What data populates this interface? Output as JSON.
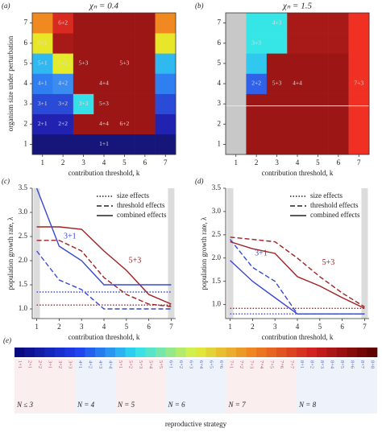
{
  "chart_data": [
    {
      "type": "heatmap",
      "panel": "(a)",
      "title": "χₙ = 0.4",
      "xlabel": "contribution threshold, k",
      "ylabel": "organism size under perturbation",
      "xlim": [
        0.5,
        7.5
      ],
      "ylim": [
        0.5,
        7.5
      ],
      "xticks": [
        1,
        2,
        3,
        4,
        5,
        6,
        7
      ],
      "yticks": [
        1,
        2,
        3,
        4,
        5,
        6,
        7
      ],
      "rows": [
        {
          "colors": [
            "#15157a",
            "#15157a",
            "#15157a",
            "#15157a",
            "#15157a",
            "#15157a",
            "#15157a"
          ],
          "labels": [
            null,
            null,
            null,
            "1+1",
            null,
            null,
            null
          ]
        },
        {
          "colors": [
            "#2222b0",
            "#2222b0",
            "#9c1616",
            "#9c1616",
            "#9c1616",
            "#9c1616",
            "#2222b0"
          ],
          "labels": [
            "2+1",
            "2+2",
            null,
            "4+4",
            "6+2",
            null,
            null
          ]
        },
        {
          "colors": [
            "#2a4ad8",
            "#2a4ad8",
            "#36e0e8",
            "#9c1616",
            "#9c1616",
            "#9c1616",
            "#2a4ad8"
          ],
          "labels": [
            "3+1",
            "3+2",
            "3+3",
            "5+3",
            null,
            null,
            null
          ]
        },
        {
          "colors": [
            "#2f7ff0",
            "#3a8cf0",
            "#9c1616",
            "#9c1616",
            "#9c1616",
            "#9c1616",
            "#2f7ff0"
          ],
          "labels": [
            "4+1",
            "4+2",
            null,
            "4+4",
            null,
            null,
            null
          ]
        },
        {
          "colors": [
            "#30b8f0",
            "#e4ea2c",
            "#9c1616",
            "#9c1616",
            "#9c1616",
            "#9c1616",
            "#30b8f0"
          ],
          "labels": [
            "5+1",
            "5+2",
            "5+3",
            null,
            "5+3",
            null,
            null
          ]
        },
        {
          "colors": [
            "#e8e628",
            "#a81a18",
            "#9c1616",
            "#9c1616",
            "#9c1616",
            "#9c1616",
            "#e8e628"
          ],
          "labels": [
            "6+1",
            null,
            null,
            null,
            null,
            null,
            null
          ]
        },
        {
          "colors": [
            "#f08a20",
            "#d82a20",
            "#9c1616",
            "#9c1616",
            "#9c1616",
            "#9c1616",
            "#f08a20"
          ],
          "labels": [
            null,
            "6+2",
            null,
            null,
            null,
            null,
            null
          ]
        }
      ]
    },
    {
      "type": "heatmap",
      "panel": "(b)",
      "title": "χₙ = 1.5",
      "xlabel": "contribution threshold, k",
      "xlim": [
        0.5,
        7.5
      ],
      "ylim": [
        0.5,
        7.5
      ],
      "xticks": [
        1,
        2,
        3,
        4,
        5,
        6,
        7
      ],
      "yticks": [
        1,
        2,
        3,
        4,
        5,
        6,
        7
      ],
      "hline": {
        "value": 2.9,
        "color": "#e8e8e8"
      },
      "rows": [
        {
          "colors": [
            "#c8c8c8",
            "#9c1616",
            "#9c1616",
            "#9c1616",
            "#9c1616",
            "#9c1616",
            "#f03022"
          ],
          "labels": [
            null,
            null,
            null,
            null,
            null,
            null,
            null
          ]
        },
        {
          "colors": [
            "#c8c8c8",
            "#9c1616",
            "#9c1616",
            "#9c1616",
            "#9c1616",
            "#9c1616",
            "#f03022"
          ],
          "labels": [
            null,
            null,
            null,
            null,
            null,
            null,
            null
          ]
        },
        {
          "colors": [
            "#c8c8c8",
            "#9c1616",
            "#9c1616",
            "#9c1616",
            "#9c1616",
            "#9c1616",
            "#f03022"
          ],
          "labels": [
            null,
            null,
            null,
            null,
            null,
            null,
            null
          ]
        },
        {
          "colors": [
            "#c8c8c8",
            "#2f62e8",
            "#9c1616",
            "#9c1616",
            "#9c1616",
            "#9c1616",
            "#f03022"
          ],
          "labels": [
            null,
            "2+2",
            "5+3",
            "4+4",
            null,
            null,
            "7+3"
          ]
        },
        {
          "colors": [
            "#c8c8c8",
            "#30c8ee",
            "#9c1616",
            "#9c1616",
            "#9c1616",
            "#9c1616",
            "#f03022"
          ],
          "labels": [
            null,
            null,
            null,
            null,
            null,
            null,
            null
          ]
        },
        {
          "colors": [
            "#c8c8c8",
            "#36e6e6",
            "#36e6e6",
            "#a81a18",
            "#a81a18",
            "#a81a18",
            "#f03022"
          ],
          "labels": [
            null,
            "3+3",
            null,
            null,
            null,
            null,
            null
          ]
        },
        {
          "colors": [
            "#c8c8c8",
            "#36e6e6",
            "#36e6e6",
            "#a81a18",
            "#a81a18",
            "#a81a18",
            "#f03022"
          ],
          "labels": [
            null,
            null,
            "4+3",
            null,
            null,
            null,
            null
          ]
        }
      ]
    },
    {
      "type": "line",
      "panel": "(c)",
      "xlabel": "contribution threshold, k",
      "ylabel": "population growth rate, λ",
      "xlim": [
        0.8,
        7.2
      ],
      "ylim": [
        0.8,
        3.5
      ],
      "xticks": [
        1,
        2,
        3,
        4,
        5,
        6,
        7
      ],
      "yticks": [
        {
          "value": 1,
          "label": "1.0"
        },
        1.5,
        {
          "value": 2,
          "label": "2.0"
        },
        2.5,
        {
          "value": 3,
          "label": "3.0"
        },
        3.5
      ],
      "shaded": [
        1,
        7
      ],
      "x": [
        1,
        2,
        3,
        4,
        5,
        6,
        7
      ],
      "legend": [
        {
          "name": "size effects",
          "dash": "dotted"
        },
        {
          "name": "threshold effects",
          "dash": "dashed"
        },
        {
          "name": "combined effects",
          "dash": "solid"
        }
      ],
      "series": [
        {
          "color": "#3848d0",
          "dash": "dotted",
          "values": [
            1.35,
            1.35,
            1.35,
            1.35,
            1.35,
            1.35,
            1.35
          ]
        },
        {
          "color": "#a02020",
          "dash": "dotted",
          "values": [
            1.08,
            1.08,
            1.08,
            1.08,
            1.08,
            1.08,
            1.08
          ]
        },
        {
          "color": "#a02020",
          "dash": "dashed",
          "values": [
            2.42,
            2.42,
            2.2,
            1.65,
            1.3,
            1.1,
            1.05
          ]
        },
        {
          "color": "#3848d0",
          "dash": "dashed",
          "values": [
            2.2,
            1.6,
            1.4,
            1.0,
            1.0,
            1.0,
            1.0
          ]
        },
        {
          "color": "#a02020",
          "dash": "solid",
          "values": [
            2.7,
            2.7,
            2.65,
            2.2,
            1.8,
            1.3,
            1.1
          ]
        },
        {
          "color": "#3848d0",
          "dash": "solid",
          "values": [
            3.5,
            2.3,
            2.0,
            1.5,
            1.5,
            1.5,
            1.5
          ]
        }
      ],
      "annotations": [
        {
          "text": "5+3",
          "x": 5.1,
          "y": 2.0,
          "color": "#a02020"
        },
        {
          "text": "3+1",
          "x": 2.2,
          "y": 2.5,
          "color": "#3848d0"
        }
      ]
    },
    {
      "type": "line",
      "panel": "(d)",
      "xlabel": "contribution threshold, k",
      "ylabel": "population growth rate, λ",
      "xlim": [
        0.8,
        7.2
      ],
      "ylim": [
        0.7,
        3.5
      ],
      "xticks": [
        1,
        2,
        3,
        4,
        5,
        6,
        7
      ],
      "yticks": [
        {
          "value": 1,
          "label": "1.0"
        },
        1.5,
        {
          "value": 2,
          "label": "2.0"
        },
        2.5,
        {
          "value": 3,
          "label": "3.0"
        },
        3.5
      ],
      "shaded": [
        1,
        7
      ],
      "x": [
        1,
        2,
        3,
        4,
        5,
        6,
        7
      ],
      "legend": [
        {
          "name": "size effects",
          "dash": "dotted"
        },
        {
          "name": "threshold effects",
          "dash": "dashed"
        },
        {
          "name": "combined effects",
          "dash": "solid"
        }
      ],
      "series": [
        {
          "color": "#a02020",
          "dash": "dotted",
          "values": [
            0.92,
            0.92,
            0.92,
            0.92,
            0.92,
            0.92,
            0.92
          ]
        },
        {
          "color": "#3848d0",
          "dash": "dotted",
          "values": [
            0.8,
            0.8,
            0.8,
            0.8,
            0.8,
            0.8,
            0.8
          ]
        },
        {
          "color": "#a02020",
          "dash": "dashed",
          "values": [
            2.45,
            2.4,
            2.35,
            2.0,
            1.6,
            1.25,
            0.95
          ]
        },
        {
          "color": "#3848d0",
          "dash": "dashed",
          "values": [
            2.4,
            1.8,
            1.5,
            0.8,
            0.8,
            0.8,
            0.8
          ]
        },
        {
          "color": "#a02020",
          "dash": "solid",
          "values": [
            2.35,
            2.2,
            2.1,
            1.6,
            1.4,
            1.15,
            0.92
          ]
        },
        {
          "color": "#3848d0",
          "dash": "solid",
          "values": [
            1.95,
            1.5,
            1.15,
            0.8,
            0.8,
            0.8,
            0.8
          ]
        }
      ],
      "annotations": [
        {
          "text": "5+3",
          "x": 5.1,
          "y": 1.9,
          "color": "#a02020"
        },
        {
          "text": "3+1",
          "x": 2.1,
          "y": 2.1,
          "color": "#3848d0"
        }
      ]
    },
    {
      "type": "strategy-bar",
      "panel": "(e)",
      "xlabel": "reproductive strategy",
      "colormap": [
        "#0a0a80",
        "#2040f0",
        "#30e0f0",
        "#e0f040",
        "#f08020",
        "#d02020",
        "#600000"
      ],
      "groups": [
        {
          "label": "N ≤ 3",
          "strategies": [
            "1+1",
            "2+1",
            "2+2",
            "3+1",
            "3+2",
            "3+3"
          ]
        },
        {
          "label": "N = 4",
          "strategies": [
            "4+1",
            "4+2",
            "4+3",
            "4+4"
          ]
        },
        {
          "label": "N = 5",
          "strategies": [
            "5+1",
            "5+2",
            "5+3",
            "5+4",
            "5+5"
          ]
        },
        {
          "label": "N = 6",
          "strategies": [
            "6+1",
            "6+2",
            "6+3",
            "6+4",
            "6+5",
            "6+6"
          ]
        },
        {
          "label": "N = 7",
          "strategies": [
            "7+1",
            "7+2",
            "7+3",
            "7+4",
            "7+5",
            "7+6",
            "7+7"
          ]
        },
        {
          "label": "N = 8",
          "strategies": [
            "8+1",
            "8+2",
            "8+3",
            "8+4",
            "8+5",
            "8+6",
            "8+7",
            "8+8"
          ]
        }
      ]
    }
  ]
}
